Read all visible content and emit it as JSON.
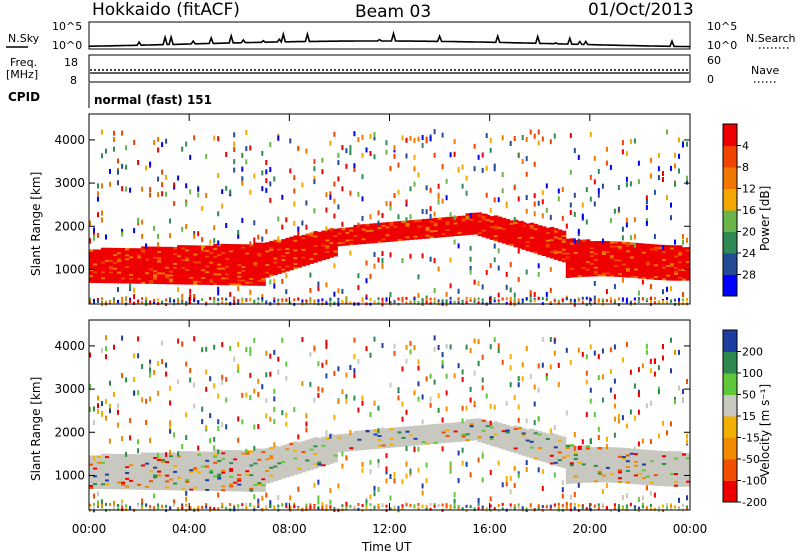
{
  "header": {
    "station": "Hokkaido (fitACF)",
    "beam": "Beam 03",
    "date": "01/Oct/2013"
  },
  "noise_panel": {
    "left_label": "N.Sky",
    "left_ticks": [
      "10^5",
      "10^0"
    ],
    "right_ticks": [
      "10^5",
      "10^0"
    ],
    "right_label": "N.Search"
  },
  "freq_panel": {
    "left_label_1": "Freq.",
    "left_label_2": "[MHz]",
    "left_ticks": [
      "18",
      "8"
    ],
    "right_ticks": [
      "60",
      "0"
    ],
    "right_label": "Nave"
  },
  "cpid_panel": {
    "label": "CPID",
    "text": "normal (fast) 151"
  },
  "colors": {
    "power": [
      "#0000ff",
      "#234b96",
      "#2f8a55",
      "#6ab54a",
      "#f2a800",
      "#f07800",
      "#f04400",
      "#ee0000"
    ],
    "velocity": [
      "#ee0000",
      "#f05000",
      "#f08a00",
      "#f2b000",
      "#c8c8c0",
      "#5ec83a",
      "#2c8a4e",
      "#1d3ea0"
    ]
  },
  "chart_data": [
    {
      "type": "heatmap",
      "panel": "power",
      "xlabel": "",
      "ylabel": "Slant Range [km]",
      "x_range_hours": [
        0,
        24
      ],
      "ylim": [
        200,
        4600
      ],
      "ytick_labels": [
        "1000",
        "2000",
        "3000",
        "4000"
      ],
      "colorbar_label": "Power [dB]",
      "colorbar_ticks": [
        "4",
        "8",
        "12",
        "16",
        "20",
        "24",
        "28"
      ],
      "grid": false,
      "description_of_mode": "strong echo band near 1000-2000 km slant range, rising to ~2000 km around 12:00-16:00 UT"
    },
    {
      "type": "heatmap",
      "panel": "velocity",
      "xlabel": "Time UT",
      "ylabel": "Slant Range [km]",
      "x_range_hours": [
        0,
        24
      ],
      "ylim": [
        200,
        4600
      ],
      "ytick_labels": [
        "1000",
        "2000",
        "3000",
        "4000"
      ],
      "xtick_labels": [
        "00:00",
        "04:00",
        "08:00",
        "12:00",
        "16:00",
        "20:00",
        "00:00"
      ],
      "colorbar_label": "Velocity [m s⁻¹]",
      "colorbar_ticks": [
        "200",
        "100",
        "50",
        "15",
        "-15",
        "-50",
        "-100",
        "-200"
      ],
      "grid": false
    }
  ]
}
